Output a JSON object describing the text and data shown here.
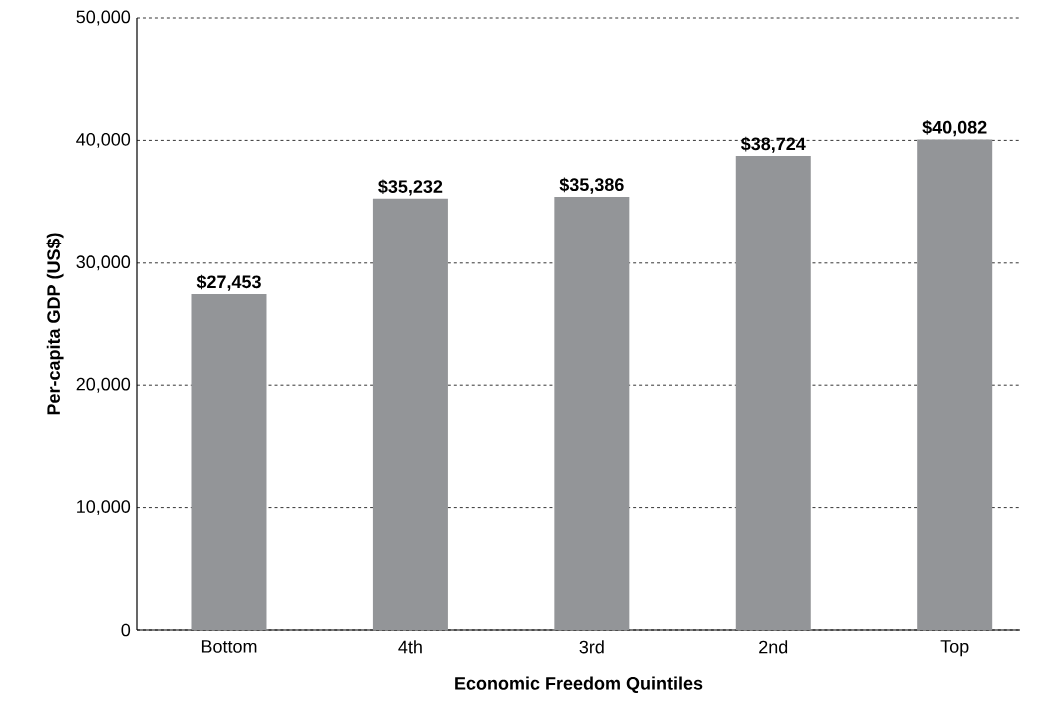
{
  "chart_data": {
    "type": "bar",
    "xlabel": "Economic Freedom Quintiles",
    "ylabel": "Per-capita GDP (US$)",
    "categories": [
      "Bottom",
      "4th",
      "3rd",
      "2nd",
      "Top"
    ],
    "values": [
      27453,
      35232,
      35386,
      38724,
      40082
    ],
    "value_labels": [
      "$27,453",
      "$35,232",
      "$35,386",
      "$38,724",
      "$40,082"
    ],
    "color": "#939598",
    "ylim": [
      0,
      50000
    ],
    "yticks": [
      0,
      {
        "value": 10000,
        "label": "10,000"
      },
      {
        "value": 20000,
        "label": "20,000"
      },
      {
        "value": 30000,
        "label": "30,000"
      },
      {
        "value": 40000,
        "label": "40,000"
      },
      {
        "value": 50000,
        "label": "50,000"
      }
    ],
    "grid": "y"
  }
}
